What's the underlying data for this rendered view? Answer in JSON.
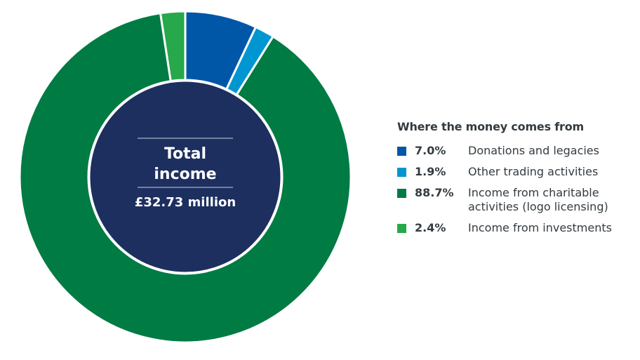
{
  "chart_data": {
    "type": "pie",
    "title": "",
    "center": {
      "title_line1": "Total",
      "title_line2": "income",
      "amount": "£32.73 million"
    },
    "legend": {
      "title": "Where the money comes from",
      "placement": "right"
    },
    "slices": [
      {
        "pct_label": "7.0%",
        "value": 7.0,
        "label": "Donations and legacies",
        "color": "#0057a8"
      },
      {
        "pct_label": "1.9%",
        "value": 1.9,
        "label": "Other trading activities",
        "color": "#0096d1"
      },
      {
        "pct_label": "88.7%",
        "value": 88.7,
        "label": "Income from charitable activities (logo licensing)",
        "color": "#007b43"
      },
      {
        "pct_label": "2.4%",
        "value": 2.4,
        "label": "Income from investments",
        "color": "#27a84a"
      }
    ],
    "colors": {
      "center_fill": "#1d2f5f",
      "separator": "#ffffff"
    }
  }
}
